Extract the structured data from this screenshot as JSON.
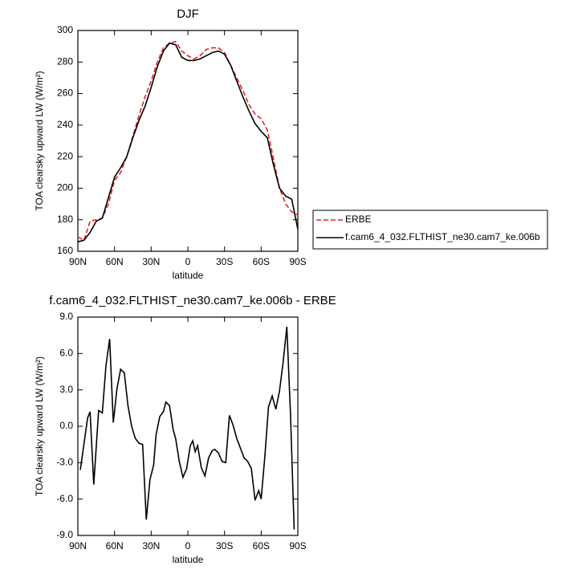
{
  "chart_data": [
    {
      "type": "line",
      "title": "DJF",
      "xlabel": "latitude",
      "ylabel": "TOA clearsky upward LW (W/m²)",
      "x": [
        90,
        85,
        80,
        75,
        70,
        65,
        60,
        55,
        50,
        45,
        40,
        35,
        30,
        25,
        20,
        15,
        10,
        5,
        0,
        -5,
        -10,
        -15,
        -20,
        -25,
        -30,
        -35,
        -40,
        -45,
        -50,
        -55,
        -60,
        -65,
        -70,
        -75,
        -80,
        -85,
        -90
      ],
      "xlim": [
        90,
        -90
      ],
      "xticks": [
        {
          "value": 90,
          "label": "90N"
        },
        {
          "value": 60,
          "label": "60N"
        },
        {
          "value": 30,
          "label": "30N"
        },
        0,
        {
          "value": -30,
          "label": "30S"
        },
        {
          "value": -60,
          "label": "60S"
        },
        {
          "value": -90,
          "label": "90S"
        }
      ],
      "ylim": [
        160,
        300
      ],
      "yticks": [
        160,
        180,
        200,
        220,
        240,
        260,
        280,
        300
      ],
      "legend": "right",
      "series": [
        {
          "name": "ERBE",
          "color": "#e8231f",
          "line_style": "dashed",
          "values": [
            169,
            167,
            179,
            180,
            181,
            190,
            205,
            210,
            220,
            233,
            246,
            258,
            268,
            280,
            289,
            292,
            293,
            287,
            284,
            282,
            284,
            288,
            289,
            289,
            286,
            278,
            270,
            262,
            253,
            247,
            244,
            237,
            219,
            200,
            190,
            185,
            183
          ]
        },
        {
          "name": "f.cam6_4_032.FLTHIST_ne30.cam7_ke.006b",
          "color": "#000000",
          "line_style": "solid",
          "values": [
            166,
            167,
            172,
            179,
            181,
            194,
            207,
            213,
            220,
            232,
            243,
            252,
            264,
            277,
            287,
            292,
            291,
            283,
            281,
            281,
            282,
            284,
            286,
            287,
            285,
            278,
            268,
            258,
            249,
            241,
            236,
            232,
            215,
            200,
            195,
            193,
            174
          ]
        }
      ]
    },
    {
      "type": "line",
      "title": "f.cam6_4_032.FLTHIST_ne30.cam7_ke.006b - ERBE",
      "xlabel": "latitude",
      "ylabel": "TOA clearsky upward LW (W/m²)",
      "x": [
        88,
        82,
        80,
        77,
        73,
        70,
        67,
        64,
        61,
        58,
        55,
        52,
        49,
        46,
        43,
        40,
        37,
        34,
        31,
        28,
        26,
        23,
        20,
        18,
        15,
        12,
        10,
        7,
        4,
        1,
        -2,
        -4,
        -6,
        -8,
        -11,
        -14,
        -17,
        -20,
        -22,
        -25,
        -28,
        -31,
        -34,
        -37,
        -40,
        -43,
        -46,
        -49,
        -52,
        -55,
        -58,
        -60,
        -63,
        -66,
        -69,
        -72,
        -75,
        -78,
        -81,
        -84,
        -87
      ],
      "xlim": [
        90,
        -90
      ],
      "xticks": [
        {
          "value": 90,
          "label": "90N"
        },
        {
          "value": 60,
          "label": "60N"
        },
        {
          "value": 30,
          "label": "30N"
        },
        0,
        {
          "value": -30,
          "label": "30S"
        },
        {
          "value": -60,
          "label": "60S"
        },
        {
          "value": -90,
          "label": "90S"
        }
      ],
      "ylim": [
        -9,
        9
      ],
      "yticks": [
        {
          "value": -9,
          "label": "-9.0"
        },
        {
          "value": -6,
          "label": "-6.0"
        },
        {
          "value": -3,
          "label": "-3.0"
        },
        {
          "value": 0,
          "label": "0.0"
        },
        {
          "value": 3,
          "label": "3.0"
        },
        {
          "value": 6,
          "label": "6.0"
        },
        {
          "value": 9,
          "label": "9.0"
        }
      ],
      "series": [
        {
          "color": "#000000",
          "line_style": "solid",
          "values": [
            -3.6,
            0.7,
            1.2,
            -4.8,
            1.3,
            1.1,
            5.0,
            7.2,
            0.3,
            3.1,
            4.7,
            4.4,
            1.7,
            0.0,
            -1.0,
            -1.4,
            -1.5,
            -7.7,
            -4.4,
            -3.2,
            -0.7,
            0.8,
            1.2,
            2.0,
            1.7,
            -0.3,
            -1.0,
            -2.9,
            -4.2,
            -3.5,
            -1.6,
            -1.2,
            -2.1,
            -1.6,
            -3.4,
            -4.1,
            -2.6,
            -2.0,
            -1.9,
            -2.2,
            -2.9,
            -3.0,
            0.9,
            0.1,
            -1.0,
            -1.8,
            -2.6,
            -2.9,
            -3.5,
            -6.1,
            -5.3,
            -6.0,
            -2.5,
            1.6,
            2.5,
            1.4,
            2.9,
            5.3,
            8.2,
            1.0,
            -8.5
          ]
        }
      ]
    }
  ]
}
